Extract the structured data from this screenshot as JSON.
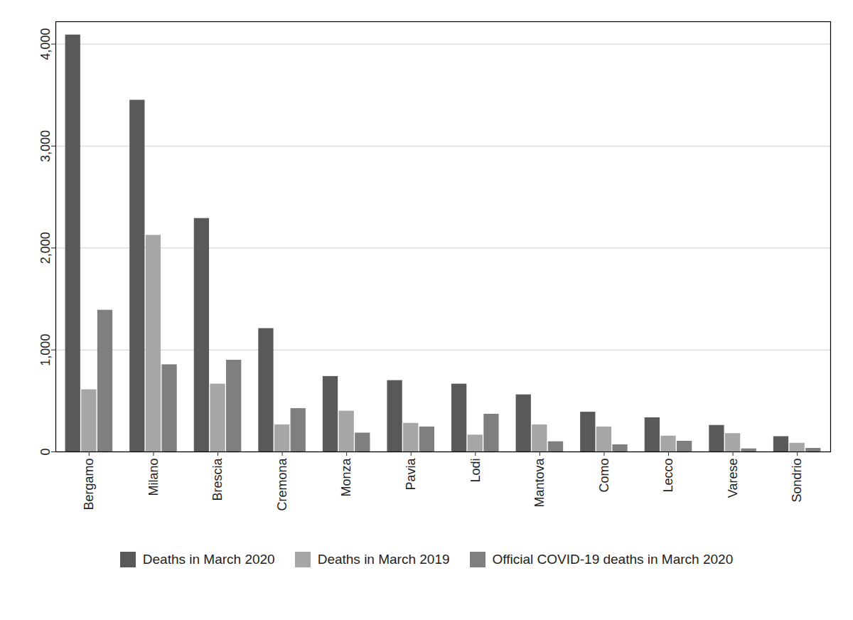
{
  "chart_data": {
    "type": "bar",
    "categories": [
      "Bergamo",
      "Milano",
      "Brescia",
      "Cremona",
      "Monza",
      "Pavia",
      "Lodi",
      "Mantova",
      "Como",
      "Lecco",
      "Varese",
      "Sondrio"
    ],
    "series": [
      {
        "name": "Deaths in March 2020",
        "color": "#595959",
        "values": [
          4090,
          3450,
          2290,
          1210,
          740,
          700,
          665,
          560,
          390,
          335,
          260,
          150
        ]
      },
      {
        "name": "Deaths in March 2019",
        "color": "#a6a6a6",
        "values": [
          610,
          2125,
          665,
          265,
          400,
          280,
          165,
          265,
          245,
          155,
          180,
          85
        ]
      },
      {
        "name": "Official COVID-19 deaths in March 2020",
        "color": "#7f7f7f",
        "values": [
          1390,
          855,
          900,
          425,
          185,
          245,
          370,
          100,
          70,
          105,
          30,
          35
        ]
      }
    ],
    "ylim": [
      0,
      4220
    ],
    "yticks": [
      0,
      {
        "value": 1000,
        "label": "1,000"
      },
      {
        "value": 2000,
        "label": "2,000"
      },
      {
        "value": 3000,
        "label": "3,000"
      },
      {
        "value": 4000,
        "label": "4,000"
      }
    ],
    "grid": true,
    "legend": "bottom"
  }
}
